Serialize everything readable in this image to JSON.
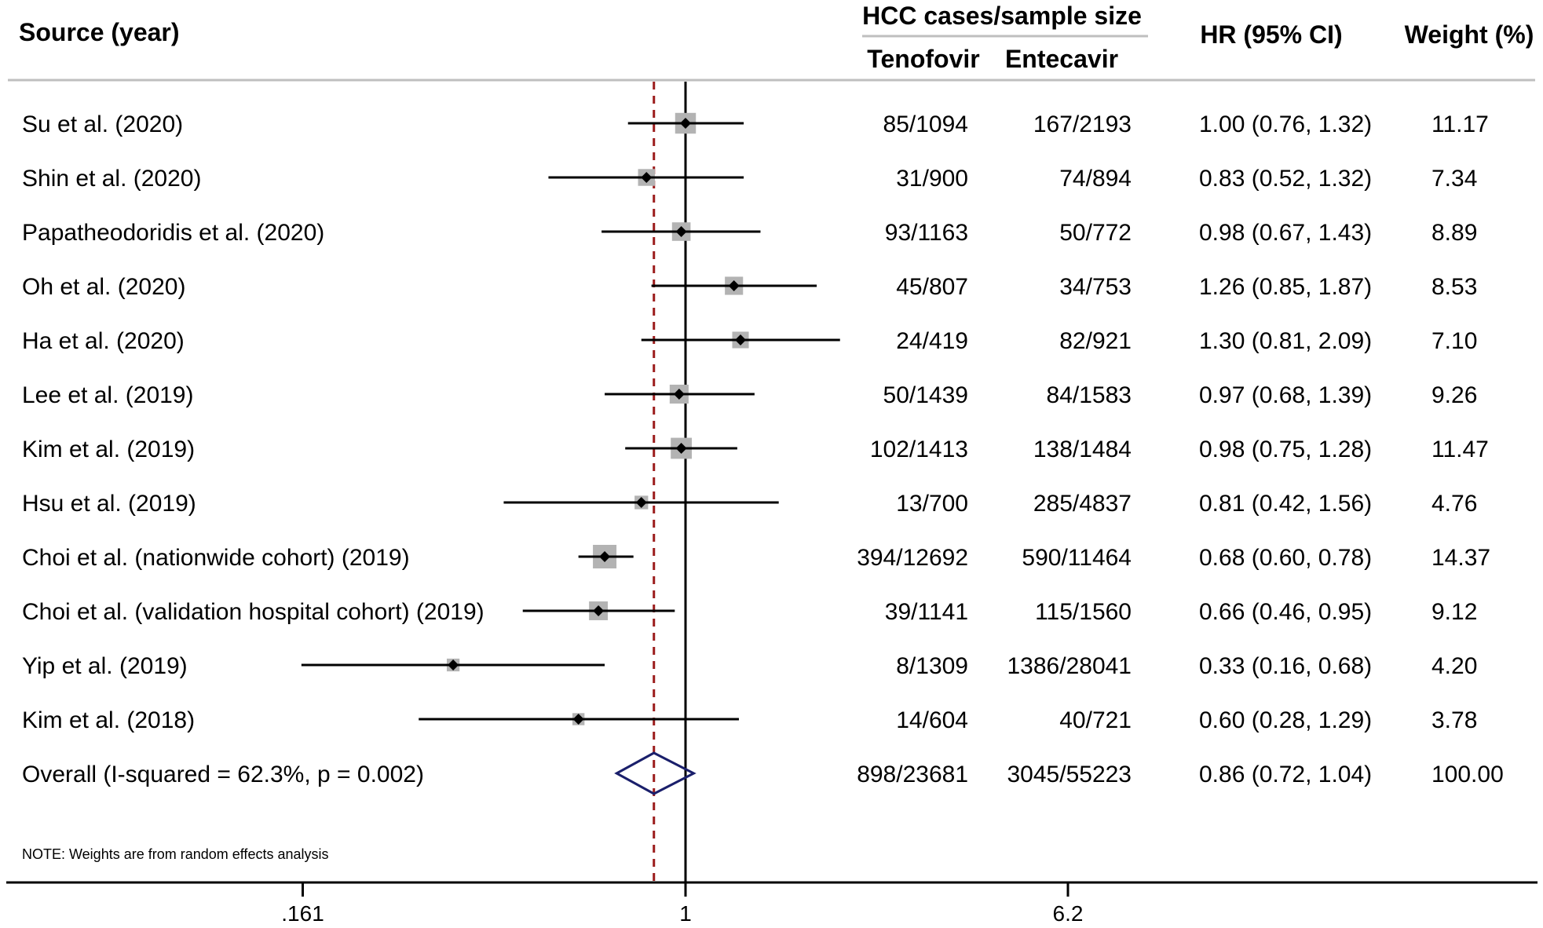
{
  "chart_data": {
    "type": "forest",
    "headers": {
      "source": "Source (year)",
      "group": "HCC cases/sample size",
      "tenofovir": "Tenofovir",
      "entecavir": "Entecavir",
      "hr": "HR (95% CI)",
      "weight": "Weight (%)"
    },
    "scale": "log",
    "xlim": [
      0.12,
      18
    ],
    "ticks": [
      {
        "value": 0.161,
        "label": ".161"
      },
      {
        "value": 1,
        "label": "1"
      },
      {
        "value": 6.2,
        "label": "6.2"
      }
    ],
    "null_line": 1,
    "overall_line": 0.86,
    "studies": [
      {
        "source": "Su et al. (2020)",
        "tenofovir": "85/1094",
        "entecavir": "167/2193",
        "hr_text": "1.00 (0.76, 1.32)",
        "weight_text": "11.17",
        "hr": 1.0,
        "lo": 0.76,
        "hi": 1.32,
        "weight": 11.17
      },
      {
        "source": "Shin et al. (2020)",
        "tenofovir": "31/900",
        "entecavir": "74/894",
        "hr_text": "0.83 (0.52, 1.32)",
        "weight_text": "7.34",
        "hr": 0.83,
        "lo": 0.52,
        "hi": 1.32,
        "weight": 7.34
      },
      {
        "source": "Papatheodoridis et al.  (2020)",
        "tenofovir": "93/1163",
        "entecavir": "50/772",
        "hr_text": "0.98 (0.67, 1.43)",
        "weight_text": "8.89",
        "hr": 0.98,
        "lo": 0.67,
        "hi": 1.43,
        "weight": 8.89
      },
      {
        "source": "Oh et al. (2020)",
        "tenofovir": "45/807",
        "entecavir": "34/753",
        "hr_text": "1.26 (0.85, 1.87)",
        "weight_text": "8.53",
        "hr": 1.26,
        "lo": 0.85,
        "hi": 1.87,
        "weight": 8.53
      },
      {
        "source": "Ha et al. (2020)",
        "tenofovir": "24/419",
        "entecavir": "82/921",
        "hr_text": "1.30 (0.81, 2.09)",
        "weight_text": "7.10",
        "hr": 1.3,
        "lo": 0.81,
        "hi": 2.09,
        "weight": 7.1
      },
      {
        "source": "Lee et al.  (2019)",
        "tenofovir": "50/1439",
        "entecavir": "84/1583",
        "hr_text": "0.97 (0.68, 1.39)",
        "weight_text": "9.26",
        "hr": 0.97,
        "lo": 0.68,
        "hi": 1.39,
        "weight": 9.26
      },
      {
        "source": "Kim et al.  (2019)",
        "tenofovir": "102/1413",
        "entecavir": "138/1484",
        "hr_text": "0.98 (0.75, 1.28)",
        "weight_text": "11.47",
        "hr": 0.98,
        "lo": 0.75,
        "hi": 1.28,
        "weight": 11.47
      },
      {
        "source": "Hsu et al.  (2019)",
        "tenofovir": "13/700",
        "entecavir": "285/4837",
        "hr_text": "0.81 (0.42, 1.56)",
        "weight_text": "4.76",
        "hr": 0.81,
        "lo": 0.42,
        "hi": 1.56,
        "weight": 4.76
      },
      {
        "source": "Choi et al. (nationwide cohort) (2019)",
        "tenofovir": "394/12692",
        "entecavir": "590/11464",
        "hr_text": "0.68 (0.60, 0.78)",
        "weight_text": "14.37",
        "hr": 0.68,
        "lo": 0.6,
        "hi": 0.78,
        "weight": 14.37
      },
      {
        "source": "Choi et al. (validation hospital cohort) (2019)",
        "tenofovir": "39/1141",
        "entecavir": "115/1560",
        "hr_text": "0.66 (0.46, 0.95)",
        "weight_text": "9.12",
        "hr": 0.66,
        "lo": 0.46,
        "hi": 0.95,
        "weight": 9.12
      },
      {
        "source": "Yip et al. (2019)",
        "tenofovir": "8/1309",
        "entecavir": "1386/28041",
        "hr_text": "0.33 (0.16, 0.68)",
        "weight_text": "4.20",
        "hr": 0.33,
        "lo": 0.16,
        "hi": 0.68,
        "weight": 4.2
      },
      {
        "source": "Kim et al. (2018)",
        "tenofovir": "14/604",
        "entecavir": "40/721",
        "hr_text": "0.60 (0.28, 1.29)",
        "weight_text": "3.78",
        "hr": 0.6,
        "lo": 0.28,
        "hi": 1.29,
        "weight": 3.78
      }
    ],
    "overall": {
      "source": "Overall  (I-squared = 62.3%, p = 0.002)",
      "tenofovir": "898/23681",
      "entecavir": "3045/55223",
      "hr_text": "0.86 (0.72, 1.04)",
      "weight_text": "100.00",
      "hr": 0.86,
      "lo": 0.72,
      "hi": 1.04
    },
    "note": "NOTE: Weights are from random effects analysis",
    "colors": {
      "ci_line": "#000000",
      "point": "#000000",
      "weight_box": "#b3b3b3",
      "overall_line": "#9b1b1b",
      "overall_diamond": "#1a1f6b",
      "rule": "#bfbfbf"
    }
  }
}
